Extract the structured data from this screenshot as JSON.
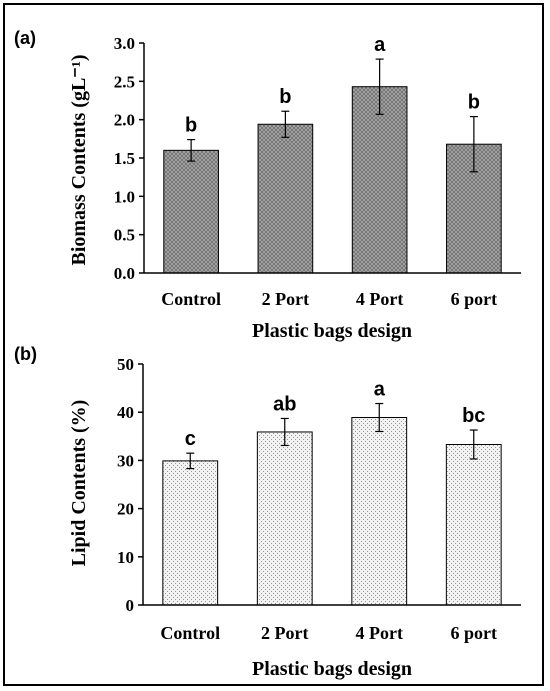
{
  "chart_data": [
    {
      "type": "bar",
      "panel": "(a)",
      "categories": [
        "Control",
        "2 Port",
        "4 Port",
        "6 port"
      ],
      "values": [
        1.6,
        1.94,
        2.43,
        1.68
      ],
      "errors": [
        0.14,
        0.17,
        0.36,
        0.36
      ],
      "significance": [
        "b",
        "b",
        "a",
        "b"
      ],
      "xlabel": "Plastic bags design",
      "ylabel": "Biomass Contents (gL⁻¹)",
      "yticks": [
        "0.0",
        "0.5",
        "1.0",
        "1.5",
        "2.0",
        "2.5",
        "3.0"
      ],
      "ylim": [
        0,
        3.0
      ],
      "bar_color": "#8a8a8a"
    },
    {
      "type": "bar",
      "panel": "(b)",
      "categories": [
        "Control",
        "2 Port",
        "4 Port",
        "6 port"
      ],
      "values": [
        29.9,
        35.9,
        38.9,
        33.3
      ],
      "errors": [
        1.6,
        2.8,
        2.9,
        3.0
      ],
      "significance": [
        "c",
        "ab",
        "a",
        "bc"
      ],
      "xlabel": "Plastic bags design",
      "ylabel": "Lipid Contents (%)",
      "yticks": [
        "0",
        "10",
        "20",
        "30",
        "40",
        "50"
      ],
      "ylim": [
        0,
        50
      ],
      "bar_color": "#e4e4e4"
    }
  ]
}
